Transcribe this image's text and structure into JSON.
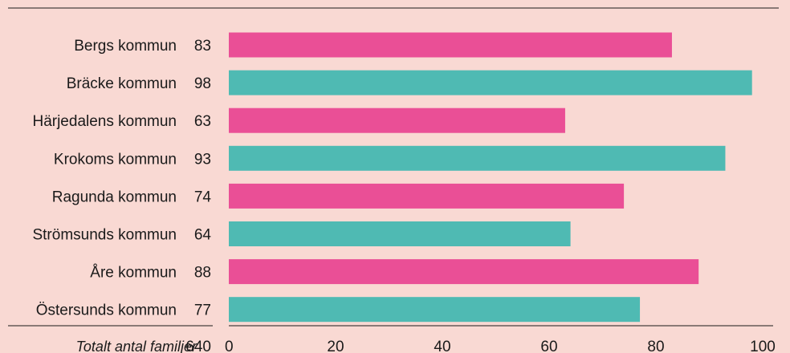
{
  "chart_data": {
    "type": "bar",
    "orientation": "horizontal",
    "categories": [
      "Bergs kommun",
      "Bräcke kommun",
      "Härjedalens kommun",
      "Krokoms kommun",
      "Ragunda kommun",
      "Strömsunds kommun",
      "Åre kommun",
      "Östersunds kommun"
    ],
    "values": [
      83,
      98,
      63,
      93,
      74,
      64,
      88,
      77
    ],
    "value_labels": [
      "83",
      "98",
      "63",
      "93",
      "74",
      "64",
      "88",
      "77"
    ],
    "xlim": [
      0,
      100
    ],
    "xticks": [
      0,
      20,
      40,
      60,
      80,
      100
    ],
    "xtick_labels": [
      "0",
      "20",
      "40",
      "60",
      "80",
      "100"
    ],
    "total_label": "Totalt antal familjer",
    "total_value": "640",
    "grid": false,
    "bar_colors": [
      "#ea4f96",
      "#4fbab3"
    ]
  },
  "colors": {
    "background": "#f9d9d3",
    "pink": "#ea4f96",
    "teal": "#4fbab3"
  }
}
